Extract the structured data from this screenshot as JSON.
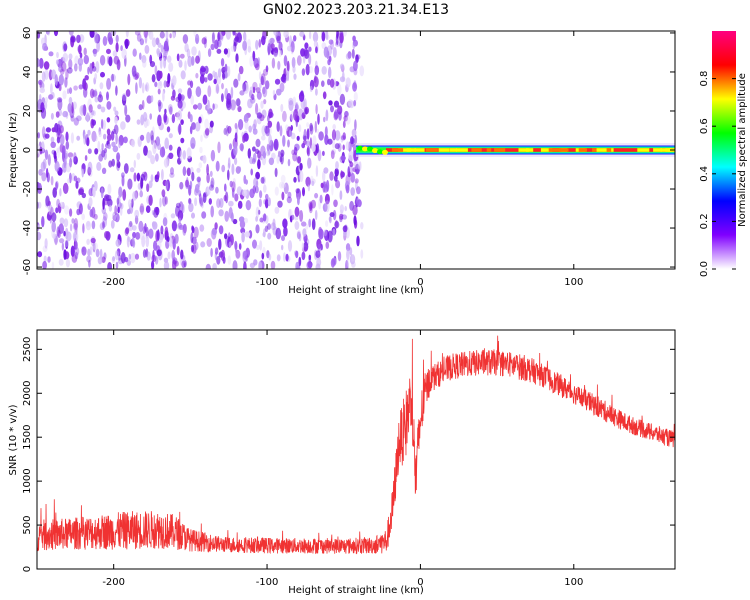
{
  "title": "GN02.2023.203.21.34.E13",
  "chart_data": [
    {
      "type": "heatmap",
      "xlabel": "Height of straight line (km)",
      "ylabel": "Frequency (Hz)",
      "xlim": [
        -250,
        166
      ],
      "ylim": [
        -61,
        61
      ],
      "xticks": [
        -200,
        -100,
        0,
        100
      ],
      "yticks": [
        -60,
        -40,
        -20,
        0,
        20,
        40,
        60
      ],
      "colorbar": {
        "label": "Normalized spectral amplitude",
        "range": [
          0.0,
          1.0
        ],
        "ticks": [
          0.0,
          0.2,
          0.4,
          0.6,
          0.8
        ],
        "colormap": [
          "#ffffff",
          "#8000ff",
          "#0000ff",
          "#00ffff",
          "#00ff00",
          "#ffff00",
          "#ff0000",
          "#ff0080"
        ]
      },
      "regions": [
        {
          "x_range": [
            -250,
            -42
          ],
          "freq_range": [
            -61,
            61
          ],
          "amplitude": "scattered 0.05–0.2 noise"
        },
        {
          "x_range": [
            -42,
            166
          ],
          "freq_range": [
            -2,
            2
          ],
          "amplitude": "narrow line at 0 Hz, peak ~0.9–1.0"
        }
      ]
    },
    {
      "type": "line",
      "xlabel": "Height of straight line (km)",
      "ylabel": "SNR (10 * v/v)",
      "xlim": [
        -250,
        166
      ],
      "ylim": [
        0,
        2720
      ],
      "xticks": [
        -200,
        -100,
        0,
        100
      ],
      "yticks": [
        0,
        500,
        1000,
        1500,
        2000,
        2500
      ],
      "grid": false,
      "series": [
        {
          "color": "#f03232",
          "x": [
            -250,
            -230,
            -210,
            -190,
            -170,
            -160,
            -150,
            -130,
            -110,
            -90,
            -70,
            -50,
            -30,
            -22,
            -18,
            -14,
            -10,
            -6,
            -3,
            0,
            3,
            6,
            10,
            15,
            20,
            30,
            40,
            50,
            60,
            70,
            80,
            90,
            100,
            110,
            120,
            130,
            140,
            150,
            160,
            166
          ],
          "y": [
            380,
            400,
            420,
            440,
            450,
            420,
            330,
            280,
            270,
            265,
            265,
            260,
            270,
            320,
            700,
            1450,
            1600,
            2000,
            1000,
            1700,
            2000,
            2150,
            2200,
            2250,
            2300,
            2330,
            2350,
            2350,
            2320,
            2280,
            2200,
            2100,
            2000,
            1900,
            1800,
            1700,
            1620,
            1560,
            1500,
            1470
          ],
          "noise_amplitude": [
            180,
            180,
            200,
            220,
            220,
            200,
            130,
            90,
            90,
            90,
            90,
            90,
            100,
            150,
            250,
            300,
            400,
            350,
            400,
            300,
            230,
            180,
            150,
            150,
            150,
            150,
            150,
            150,
            150,
            150,
            130,
            130,
            120,
            120,
            120,
            110,
            100,
            100,
            100,
            100
          ]
        }
      ]
    }
  ]
}
